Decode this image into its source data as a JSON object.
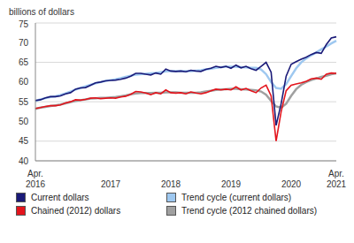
{
  "chart_data": {
    "type": "line",
    "y_label": "billions of dollars",
    "categories": [
      "Apr. 2016",
      null,
      null,
      null,
      null,
      null,
      null,
      null,
      null,
      null,
      null,
      null,
      null,
      null,
      null,
      "2017",
      null,
      null,
      null,
      null,
      null,
      null,
      null,
      null,
      null,
      null,
      null,
      "2018",
      null,
      null,
      null,
      null,
      null,
      null,
      null,
      null,
      null,
      null,
      null,
      "2019",
      null,
      null,
      null,
      null,
      null,
      null,
      null,
      null,
      null,
      null,
      null,
      "2020",
      null,
      null,
      null,
      null,
      null,
      null,
      null,
      null,
      "Apr. 2021"
    ],
    "series": [
      {
        "name": "Current dollars",
        "color": "#1a1a78",
        "values": [
          55.3,
          55.5,
          56.0,
          56.3,
          56.3,
          56.5,
          57.0,
          57.3,
          58.2,
          58.5,
          58.6,
          59.2,
          59.8,
          60.0,
          60.3,
          60.4,
          60.5,
          60.7,
          61.0,
          61.5,
          62.2,
          62.2,
          62.0,
          61.8,
          62.3,
          62.0,
          63.3,
          62.8,
          62.7,
          62.8,
          62.6,
          63.0,
          62.8,
          62.7,
          63.2,
          63.5,
          64.0,
          63.7,
          64.0,
          63.5,
          64.3,
          63.6,
          64.0,
          63.4,
          63.0,
          64.0,
          65.0,
          62.5,
          49.0,
          54.5,
          61.5,
          64.5,
          65.2,
          65.8,
          66.3,
          67.0,
          67.5,
          67.3,
          69.5,
          71.2,
          71.5
        ]
      },
      {
        "name": "Trend cycle (current dollars)",
        "color": "#9ec8f0",
        "values": [
          55.2,
          55.6,
          55.9,
          56.2,
          56.4,
          56.7,
          57.1,
          57.6,
          58.1,
          58.5,
          58.9,
          59.3,
          59.7,
          60.0,
          60.3,
          60.5,
          60.7,
          61.0,
          61.3,
          61.6,
          61.9,
          62.0,
          62.1,
          62.2,
          62.3,
          62.5,
          62.7,
          62.8,
          62.8,
          62.8,
          62.8,
          62.8,
          62.9,
          63.0,
          63.2,
          63.4,
          63.6,
          63.8,
          63.9,
          63.9,
          63.9,
          63.8,
          63.7,
          63.6,
          63.6,
          63.2,
          62.0,
          60.0,
          58.5,
          58.3,
          59.5,
          61.5,
          63.5,
          65.0,
          66.0,
          66.8,
          67.5,
          68.3,
          69.0,
          69.8,
          70.5
        ]
      },
      {
        "name": "Chained (2012) dollars",
        "color": "#e3141c",
        "values": [
          53.3,
          53.5,
          53.8,
          54.0,
          54.0,
          54.2,
          54.7,
          55.0,
          55.5,
          55.4,
          55.6,
          55.9,
          56.0,
          55.8,
          55.9,
          56.0,
          55.9,
          56.2,
          56.4,
          56.9,
          57.6,
          57.5,
          57.2,
          56.8,
          57.3,
          57.0,
          58.0,
          57.3,
          57.2,
          57.3,
          57.0,
          57.5,
          57.2,
          57.0,
          57.3,
          57.8,
          58.2,
          58.0,
          58.2,
          58.0,
          58.8,
          58.0,
          58.4,
          57.8,
          57.3,
          58.5,
          59.2,
          56.5,
          45.0,
          52.5,
          57.8,
          59.2,
          59.5,
          59.8,
          60.2,
          60.8,
          61.0,
          60.7,
          62.0,
          62.3,
          62.2
        ]
      },
      {
        "name": "Trend cycle (2012 chained dollars)",
        "color": "#a0a0a0",
        "values": [
          53.2,
          53.5,
          53.7,
          53.9,
          54.1,
          54.3,
          54.6,
          54.9,
          55.2,
          55.4,
          55.6,
          55.8,
          55.9,
          56.0,
          56.0,
          56.1,
          56.2,
          56.4,
          56.6,
          56.9,
          57.1,
          57.2,
          57.2,
          57.2,
          57.3,
          57.3,
          57.4,
          57.4,
          57.4,
          57.3,
          57.3,
          57.3,
          57.3,
          57.4,
          57.6,
          57.8,
          58.0,
          58.1,
          58.2,
          58.3,
          58.3,
          58.2,
          58.1,
          58.0,
          57.9,
          57.6,
          56.8,
          55.2,
          53.8,
          53.5,
          54.5,
          56.5,
          58.2,
          59.3,
          60.0,
          60.5,
          60.9,
          61.3,
          61.6,
          62.0,
          62.2
        ]
      }
    ],
    "ylim": [
      40,
      75
    ],
    "yticks": [
      40,
      45,
      50,
      55,
      60,
      65,
      70,
      75
    ],
    "grid": true,
    "legend": "bottom"
  }
}
